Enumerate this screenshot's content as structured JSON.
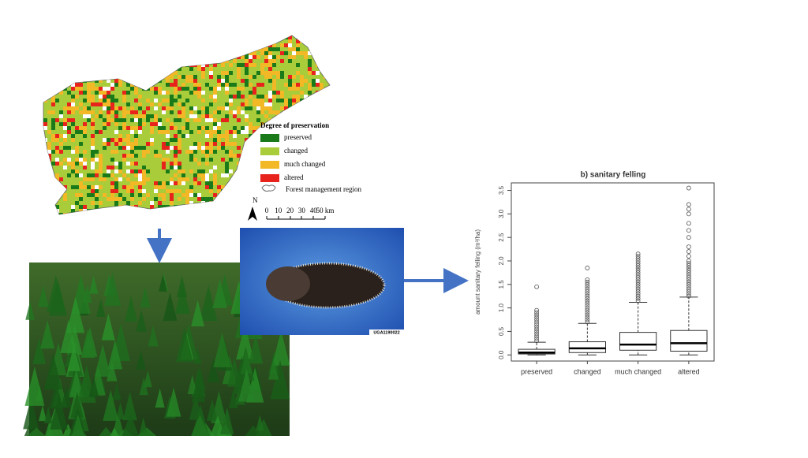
{
  "map": {
    "legend_title": "Degree of preservation",
    "legend": [
      {
        "label": "preserved",
        "color": "#1a7a1a"
      },
      {
        "label": "changed",
        "color": "#a8cc3a"
      },
      {
        "label": "much changed",
        "color": "#f2b825"
      },
      {
        "label": "altered",
        "color": "#e8231c"
      }
    ],
    "region_label": "Forest management region",
    "north": "N",
    "scale_labels": [
      "0",
      "10",
      "20",
      "30",
      "40",
      "50 km"
    ]
  },
  "beetle_image": {
    "caption": "UGA1190022"
  },
  "chart_data": {
    "type": "box",
    "title": "b) sanitary felling",
    "y_label": "amount sanitary felling (m³/ha)",
    "categories": [
      "preserved",
      "changed",
      "much changed",
      "altered"
    ],
    "boxes": [
      {
        "whisker_low": 0,
        "q1": 0.02,
        "median": 0.05,
        "q3": 0.12,
        "whisker_high": 0.27,
        "outliers": [
          0.3,
          0.35,
          0.4,
          0.45,
          0.5,
          0.55,
          0.6,
          0.65,
          0.7,
          0.75,
          0.8,
          0.85,
          0.9,
          0.95,
          1.45
        ]
      },
      {
        "whisker_low": 0,
        "q1": 0.05,
        "median": 0.14,
        "q3": 0.28,
        "whisker_high": 0.67,
        "outliers": [
          0.7,
          0.75,
          0.8,
          0.85,
          0.9,
          0.95,
          1.0,
          1.05,
          1.1,
          1.15,
          1.2,
          1.25,
          1.3,
          1.35,
          1.4,
          1.45,
          1.5,
          1.55,
          1.6,
          1.85
        ]
      },
      {
        "whisker_low": 0,
        "q1": 0.1,
        "median": 0.22,
        "q3": 0.48,
        "whisker_high": 1.12,
        "outliers": [
          1.15,
          1.2,
          1.25,
          1.3,
          1.35,
          1.4,
          1.45,
          1.5,
          1.55,
          1.6,
          1.65,
          1.7,
          1.75,
          1.8,
          1.85,
          1.9,
          1.95,
          2.0,
          2.05,
          2.1,
          2.15
        ]
      },
      {
        "whisker_low": 0,
        "q1": 0.08,
        "median": 0.25,
        "q3": 0.52,
        "whisker_high": 1.23,
        "outliers": [
          1.25,
          1.3,
          1.35,
          1.4,
          1.45,
          1.5,
          1.55,
          1.6,
          1.65,
          1.7,
          1.75,
          1.8,
          1.85,
          1.9,
          1.95,
          2.0,
          2.1,
          2.2,
          2.3,
          2.5,
          2.65,
          2.8,
          3.0,
          3.1,
          3.2,
          3.55
        ]
      }
    ],
    "ylim": [
      -0.13,
      3.66
    ],
    "yticks": [
      {
        "value": 0,
        "label": "0.0"
      },
      {
        "value": 0.5,
        "label": "0.5"
      },
      {
        "value": 1,
        "label": "1.0"
      },
      {
        "value": 1.5,
        "label": "1.5"
      },
      {
        "value": 2,
        "label": "2.0"
      },
      {
        "value": 2.5,
        "label": "2.5"
      },
      {
        "value": 3,
        "label": "3.0"
      },
      {
        "value": 3.5,
        "label": "3.5"
      }
    ]
  }
}
